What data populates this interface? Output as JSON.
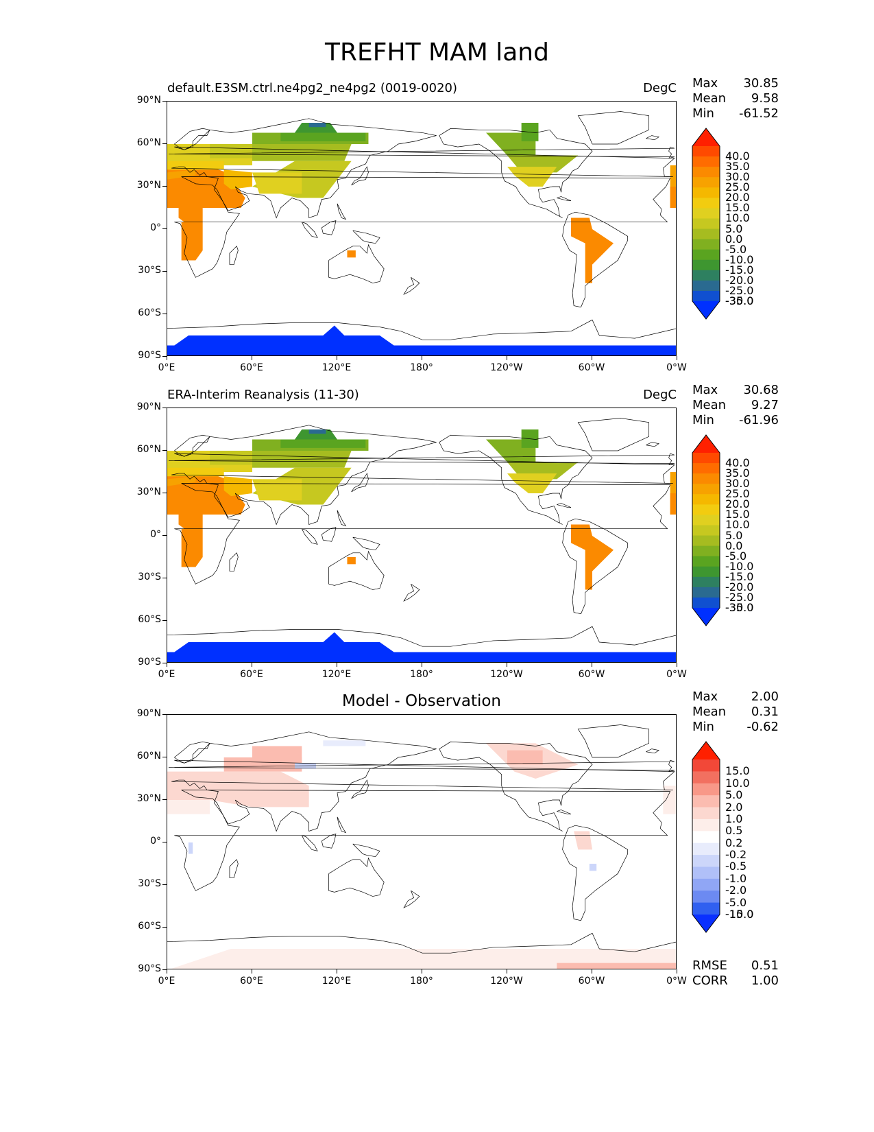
{
  "figure": {
    "title": "TREFHT MAM land",
    "xticks": [
      "0°E",
      "60°E",
      "120°E",
      "180°",
      "120°W",
      "60°W",
      "0°W"
    ],
    "yticks": [
      "90°N",
      "60°N",
      "30°N",
      "0°",
      "30°S",
      "60°S",
      "90°S"
    ]
  },
  "panels": [
    {
      "id": "test",
      "title": "default.E3SM.ctrl.ne4pg2_ne4pg2 (0019-0020)",
      "units": "DegC",
      "stats": [
        {
          "label": "Max",
          "value": "30.85"
        },
        {
          "label": "Mean",
          "value": "9.58"
        },
        {
          "label": "Min",
          "value": "-61.52"
        }
      ],
      "colorbar": {
        "labels": [
          "40.0",
          "35.0",
          "30.0",
          "25.0",
          "20.0",
          "15.0",
          "10.0",
          "5.0",
          "0.0",
          "-5.0",
          "-10.0",
          "-15.0",
          "-20.0",
          "-25.0",
          "-30.0",
          "-35.0"
        ],
        "colors": [
          "#ff2000",
          "#ff4a00",
          "#ff6c00",
          "#fb8a00",
          "#f7a200",
          "#f5b800",
          "#f2cc10",
          "#e0d020",
          "#c6c820",
          "#a6bc20",
          "#80b020",
          "#5aa420",
          "#3e9630",
          "#2e8060",
          "#2a6a90",
          "#1050d0",
          "#0030ff"
        ]
      }
    },
    {
      "id": "reference",
      "title": "ERA-Interim Reanalysis (11-30)",
      "units": "DegC",
      "stats": [
        {
          "label": "Max",
          "value": "30.68"
        },
        {
          "label": "Mean",
          "value": "9.27"
        },
        {
          "label": "Min",
          "value": "-61.96"
        }
      ],
      "colorbar": {
        "labels": [
          "40.0",
          "35.0",
          "30.0",
          "25.0",
          "20.0",
          "15.0",
          "10.0",
          "5.0",
          "0.0",
          "-5.0",
          "-10.0",
          "-15.0",
          "-20.0",
          "-25.0",
          "-30.0",
          "-35.0"
        ],
        "colors": [
          "#ff2000",
          "#ff4a00",
          "#ff6c00",
          "#fb8a00",
          "#f7a200",
          "#f5b800",
          "#f2cc10",
          "#e0d020",
          "#c6c820",
          "#a6bc20",
          "#80b020",
          "#5aa420",
          "#3e9630",
          "#2e8060",
          "#2a6a90",
          "#1050d0",
          "#0030ff"
        ]
      }
    },
    {
      "id": "difference",
      "title": "Model - Observation",
      "units": "",
      "stats": [
        {
          "label": "Max",
          "value": "2.00"
        },
        {
          "label": "Mean",
          "value": "0.31"
        },
        {
          "label": "Min",
          "value": "-0.62"
        }
      ],
      "extra_stats": [
        {
          "label": "RMSE",
          "value": "0.51"
        },
        {
          "label": "CORR",
          "value": "1.00"
        }
      ],
      "colorbar": {
        "labels": [
          "15.0",
          "10.0",
          "5.0",
          "2.0",
          "1.0",
          "0.5",
          "0.2",
          "-0.2",
          "-0.5",
          "-1.0",
          "-2.0",
          "-5.0",
          "-10.0",
          "-15.0"
        ],
        "colors": [
          "#ff2000",
          "#f24838",
          "#f27060",
          "#f89888",
          "#fbbcb0",
          "#fcd8d0",
          "#fdeeea",
          "#ffffff",
          "#e8ecfc",
          "#ccd6fa",
          "#b0c0f8",
          "#90a6f5",
          "#6c8af2",
          "#3060f0",
          "#0a30ff"
        ]
      }
    }
  ]
}
